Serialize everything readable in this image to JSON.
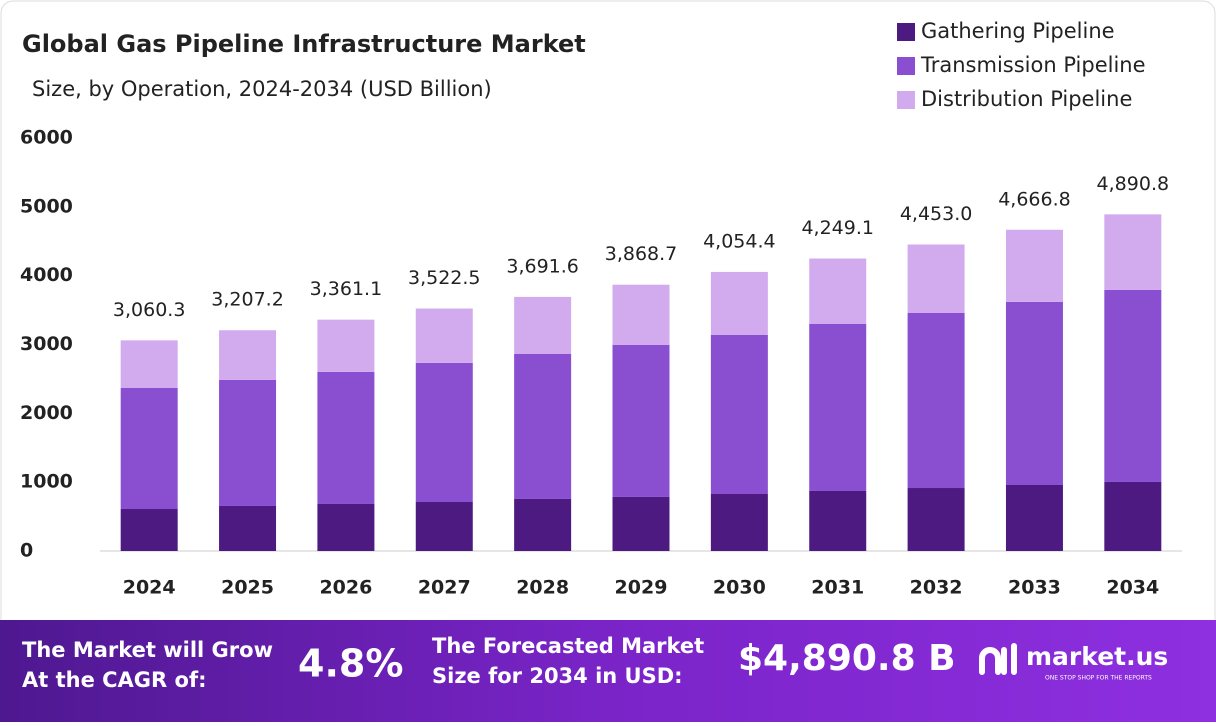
{
  "chart_data": {
    "type": "stacked_bar",
    "title": "Global Gas Pipeline Infrastructure Market",
    "subtitle": "Size, by Operation, 2024-2034 (USD Billion)",
    "categories": [
      "2024",
      "2025",
      "2026",
      "2027",
      "2028",
      "2029",
      "2030",
      "2031",
      "2032",
      "2033",
      "2034"
    ],
    "series": [
      {
        "name": "Gathering Pipeline",
        "color": "#4d1a82",
        "values": [
          610,
          654,
          683,
          712,
          756,
          785,
          828,
          872,
          915,
          959,
          1003
        ]
      },
      {
        "name": "Transmission Pipeline",
        "color": "#8a4fd1",
        "values": [
          1758,
          1831,
          1918,
          2020,
          2106,
          2208,
          2310,
          2426,
          2543,
          2659,
          2789
        ]
      },
      {
        "name": "Distribution Pipeline",
        "color": "#d2abee",
        "values": [
          692.3,
          722.2,
          760.1,
          790.5,
          829.6,
          875.7,
          916.4,
          951.1,
          995,
          1048.8,
          1098.8
        ]
      }
    ],
    "totals": [
      3060.3,
      3207.2,
      3361.1,
      3522.5,
      3691.6,
      3868.7,
      4054.4,
      4249.1,
      4453.0,
      4666.8,
      4890.8
    ],
    "total_labels": [
      "3,060.3",
      "3,207.2",
      "3,361.1",
      "3,522.5",
      "3,691.6",
      "3,868.7",
      "4,054.4",
      "4,249.1",
      "4,453.0",
      "4,666.8",
      "4,890.8"
    ],
    "ylim": [
      0,
      6000
    ],
    "yticks": [
      0,
      1000,
      2000,
      3000,
      4000,
      5000,
      6000
    ],
    "grid": false,
    "legend": "top-right"
  },
  "footer": {
    "cagr_line1": "The Market will Grow",
    "cagr_line2": "At the CAGR of:",
    "cagr_value": "4.8%",
    "forecast_line1": "The Forecasted Market",
    "forecast_line2": "Size for 2034 in USD:",
    "forecast_value": "$4,890.8 B",
    "brand": "market.us",
    "tagline": "ONE STOP SHOP FOR THE REPORTS"
  }
}
